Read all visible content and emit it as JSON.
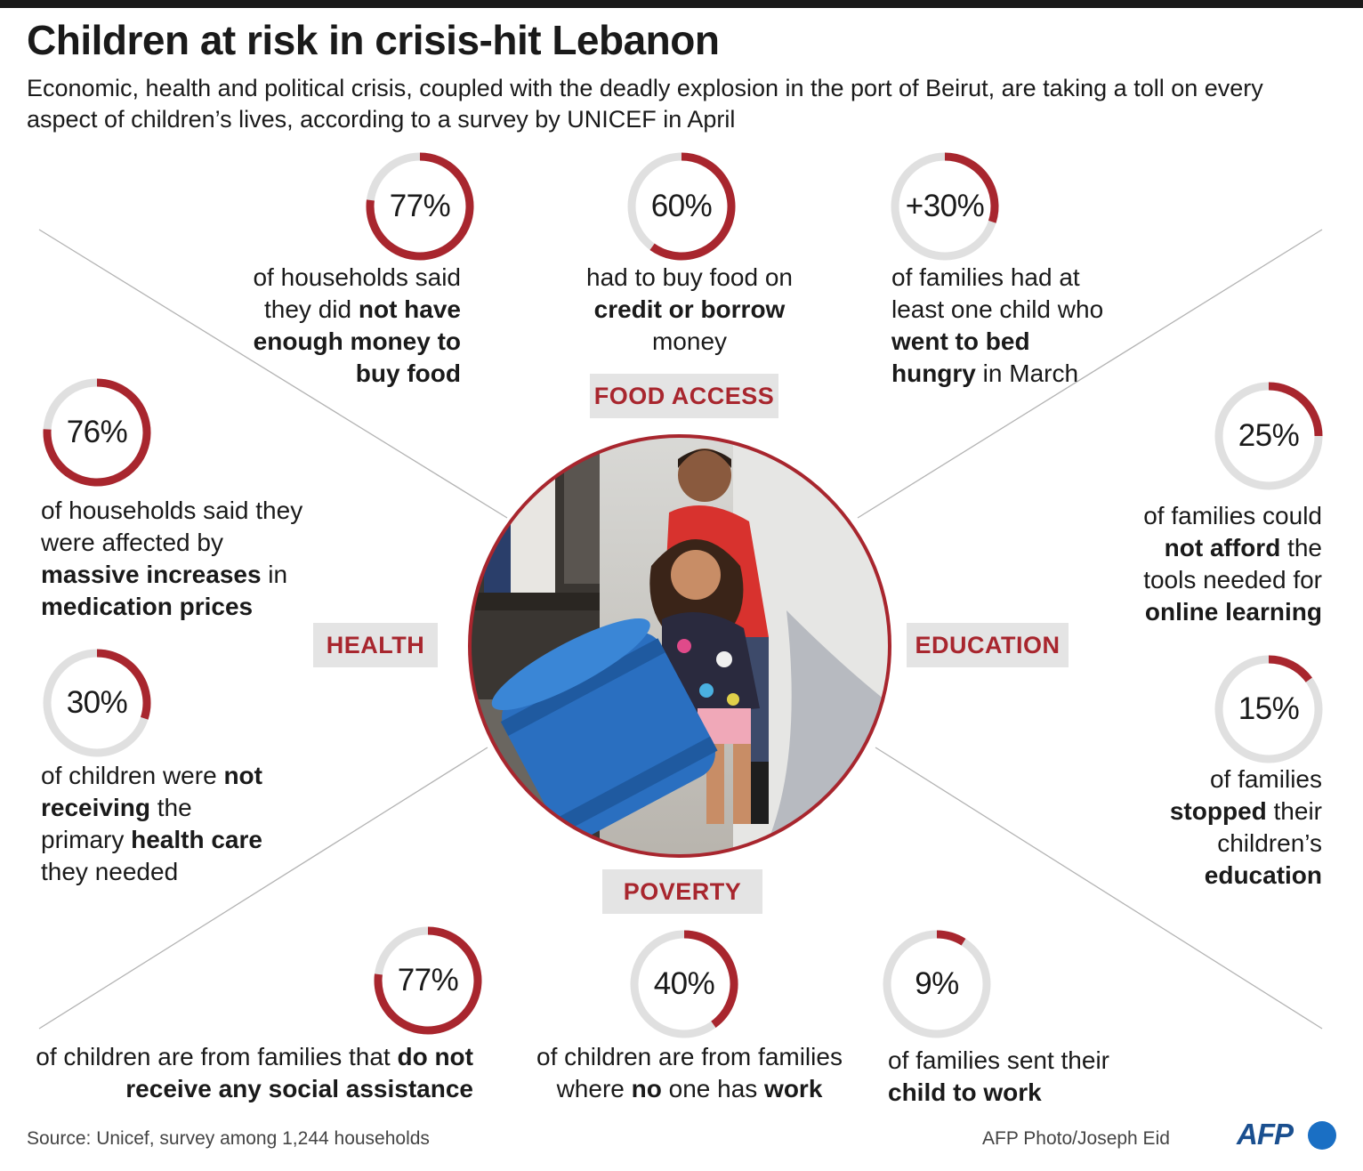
{
  "title": "Children at risk in crisis-hit Lebanon",
  "subtitle": "Economic, health and political crisis, coupled with the deadly explosion in the port of Beirut, are taking a toll on every aspect of children’s lives, according to a survey by UNICEF in April",
  "colors": {
    "accent": "#a8262e",
    "ring_track": "#e0e0e0",
    "tag_bg": "#e4e4e4"
  },
  "categories": {
    "food": "FOOD ACCESS",
    "health": "HEALTH",
    "education": "EDUCATION",
    "poverty": "POVERTY"
  },
  "chart_data": {
    "type": "pie",
    "value_unit": "percent",
    "items": [
      {
        "category": "FOOD ACCESS",
        "label": "77%",
        "value": 77,
        "parts": [
          {
            "t": "of households said they did "
          },
          {
            "t": "not have enough money to buy food",
            "b": true
          }
        ]
      },
      {
        "category": "FOOD ACCESS",
        "label": "60%",
        "value": 60,
        "parts": [
          {
            "t": "had to buy food on "
          },
          {
            "t": "credit or borrow",
            "b": true
          },
          {
            "t": " money"
          }
        ]
      },
      {
        "category": "FOOD ACCESS",
        "label": "+30%",
        "value": 30,
        "parts": [
          {
            "t": "of families had at least one child who "
          },
          {
            "t": "went to bed hungry",
            "b": true
          },
          {
            "t": " in March"
          }
        ]
      },
      {
        "category": "HEALTH",
        "label": "76%",
        "value": 76,
        "parts": [
          {
            "t": "of households said they were affected by "
          },
          {
            "t": "massive increases",
            "b": true
          },
          {
            "t": " in "
          },
          {
            "t": "medication prices",
            "b": true
          }
        ]
      },
      {
        "category": "HEALTH",
        "label": "30%",
        "value": 30,
        "parts": [
          {
            "t": "of children were "
          },
          {
            "t": "not receiving",
            "b": true
          },
          {
            "t": " the primary "
          },
          {
            "t": "health care",
            "b": true
          },
          {
            "t": " they needed"
          }
        ]
      },
      {
        "category": "EDUCATION",
        "label": "25%",
        "value": 25,
        "parts": [
          {
            "t": "of families could "
          },
          {
            "t": "not afford",
            "b": true
          },
          {
            "t": " the tools needed for "
          },
          {
            "t": "online learning",
            "b": true
          }
        ]
      },
      {
        "category": "EDUCATION",
        "label": "15%",
        "value": 15,
        "parts": [
          {
            "t": "of families "
          },
          {
            "t": "stopped",
            "b": true
          },
          {
            "t": " their children’s "
          },
          {
            "t": "education",
            "b": true
          }
        ]
      },
      {
        "category": "POVERTY",
        "label": "77%",
        "value": 77,
        "parts": [
          {
            "t": "of children are from families that "
          },
          {
            "t": "do not receive any social assistance",
            "b": true
          }
        ]
      },
      {
        "category": "POVERTY",
        "label": "40%",
        "value": 40,
        "parts": [
          {
            "t": "of children are from families where "
          },
          {
            "t": "no",
            "b": true
          },
          {
            "t": " one has "
          },
          {
            "t": "work",
            "b": true
          }
        ]
      },
      {
        "category": "POVERTY",
        "label": "9%",
        "value": 9,
        "parts": [
          {
            "t": "of families sent their "
          },
          {
            "t": "child to work",
            "b": true
          }
        ]
      }
    ]
  },
  "footer": {
    "source": "Source: Unicef, survey among 1,244 households",
    "credit": "AFP Photo/Joseph Eid",
    "logo": "AFP"
  }
}
